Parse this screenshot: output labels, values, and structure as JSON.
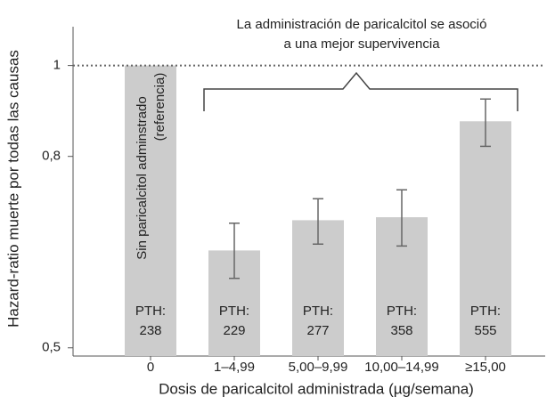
{
  "chart_data": {
    "type": "bar",
    "annotation": [
      "La administración de paricalcitol se asoció",
      "a una mejor supervivencia"
    ],
    "reference_label": [
      "Sin paricalcitol adminstrado",
      "(referencia)"
    ],
    "x_label": "Dosis de paricalcitol administrada (µg/semana)",
    "y_label": "Hazard-ratio muerte por todas las causas",
    "categories": [
      "0",
      "1–4,99",
      "5,00–9,99",
      "10,00–14,99",
      "≥15,00"
    ],
    "values": [
      1.0,
      0.635,
      0.684,
      0.689,
      0.872
    ],
    "ci_low": [
      null,
      0.593,
      0.645,
      0.642,
      0.82
    ],
    "ci_high": [
      null,
      0.679,
      0.721,
      0.737,
      0.921
    ],
    "pth_labels": [
      [
        "PTH:",
        "238"
      ],
      [
        "PTH:",
        "229"
      ],
      [
        "PTH:",
        "277"
      ],
      [
        "PTH:",
        "358"
      ],
      [
        "PTH:",
        "555"
      ]
    ],
    "color": "#cccccc",
    "error_color": "#666666",
    "log_scale": true,
    "ylim": [
      0.49,
      1.1
    ],
    "yticks": [
      {
        "value": 0.5,
        "label": "0,5"
      },
      {
        "value": 0.8,
        "label": "0,8"
      },
      1
    ],
    "reference_line": 1
  }
}
